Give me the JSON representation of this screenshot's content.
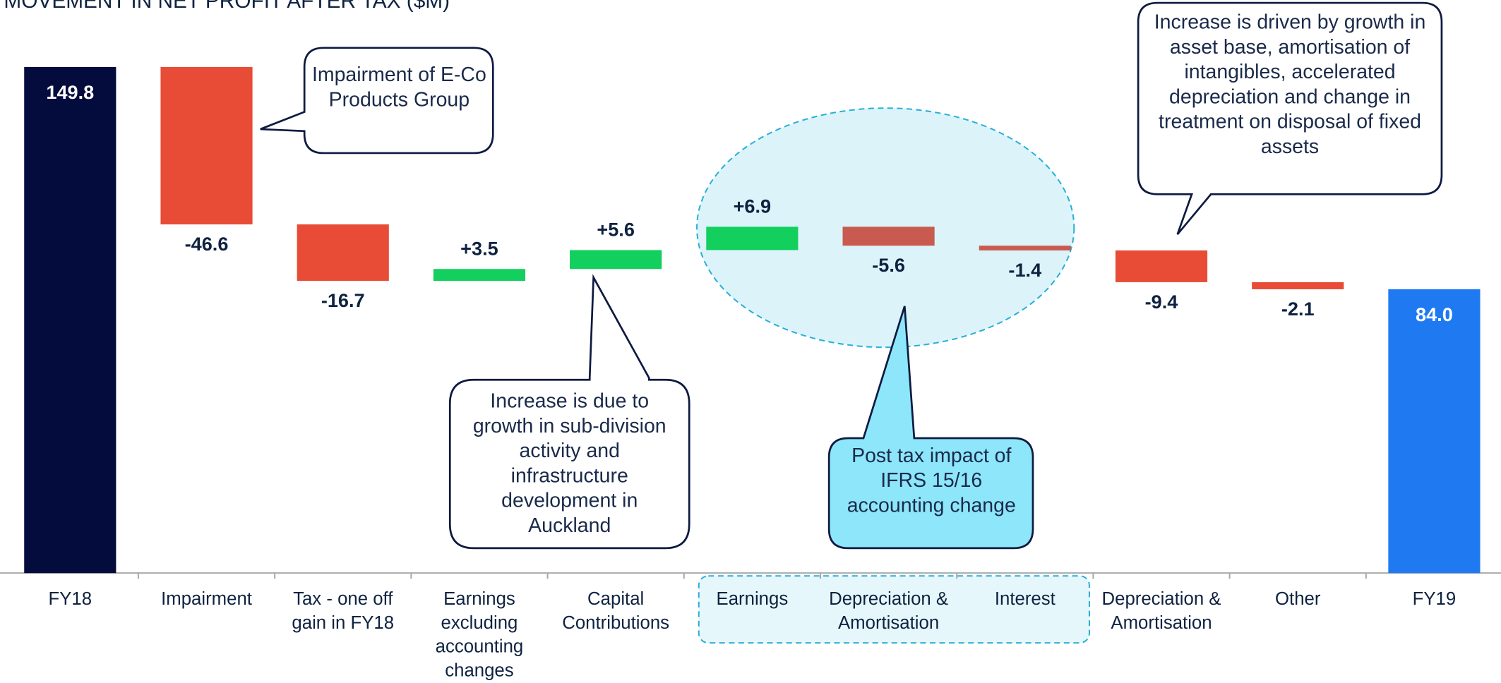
{
  "chart_data": {
    "type": "waterfall",
    "title": "MOVEMENT IN NET PROFIT AFTER TAX ($M)",
    "categories": [
      "FY18",
      "Impairment",
      "Tax - one off gain in FY18",
      "Earnings excluding accounting changes",
      "Capital Contributions",
      "Earnings",
      "Depreciation & Amortisation",
      "Interest",
      "Depreciation & Amortisation",
      "Other",
      "FY19"
    ],
    "values": [
      149.8,
      -46.6,
      -16.7,
      3.5,
      5.6,
      6.9,
      -5.6,
      -1.4,
      -9.4,
      -2.1,
      84.0
    ],
    "value_labels": [
      "149.8",
      "-46.6",
      "-16.7",
      "+3.5",
      "+5.6",
      "+6.9",
      "-5.6",
      "-1.4",
      "-9.4",
      "-2.1",
      "84.0"
    ],
    "measures": [
      "absolute",
      "relative",
      "relative",
      "relative",
      "relative",
      "relative",
      "relative",
      "relative",
      "relative",
      "relative",
      "absolute"
    ],
    "colors": [
      "#030c3c",
      "#e84c36",
      "#e84c36",
      "#12cf5e",
      "#12cf5e",
      "#12cf5e",
      "#c85a4f",
      "#c85a4f",
      "#e84c36",
      "#e84c36",
      "#1f7af2"
    ],
    "annotations": [
      "Impairment of E-Co Products Group",
      "Increase is driven by growth in asset base, amortisation of intangibles, accelerated depreciation and change in treatment on disposal of fixed assets",
      "Increase is due to growth in sub-division activity and infrastructure development in Auckland",
      "Post tax impact of IFRS 15/16 accounting change"
    ]
  }
}
